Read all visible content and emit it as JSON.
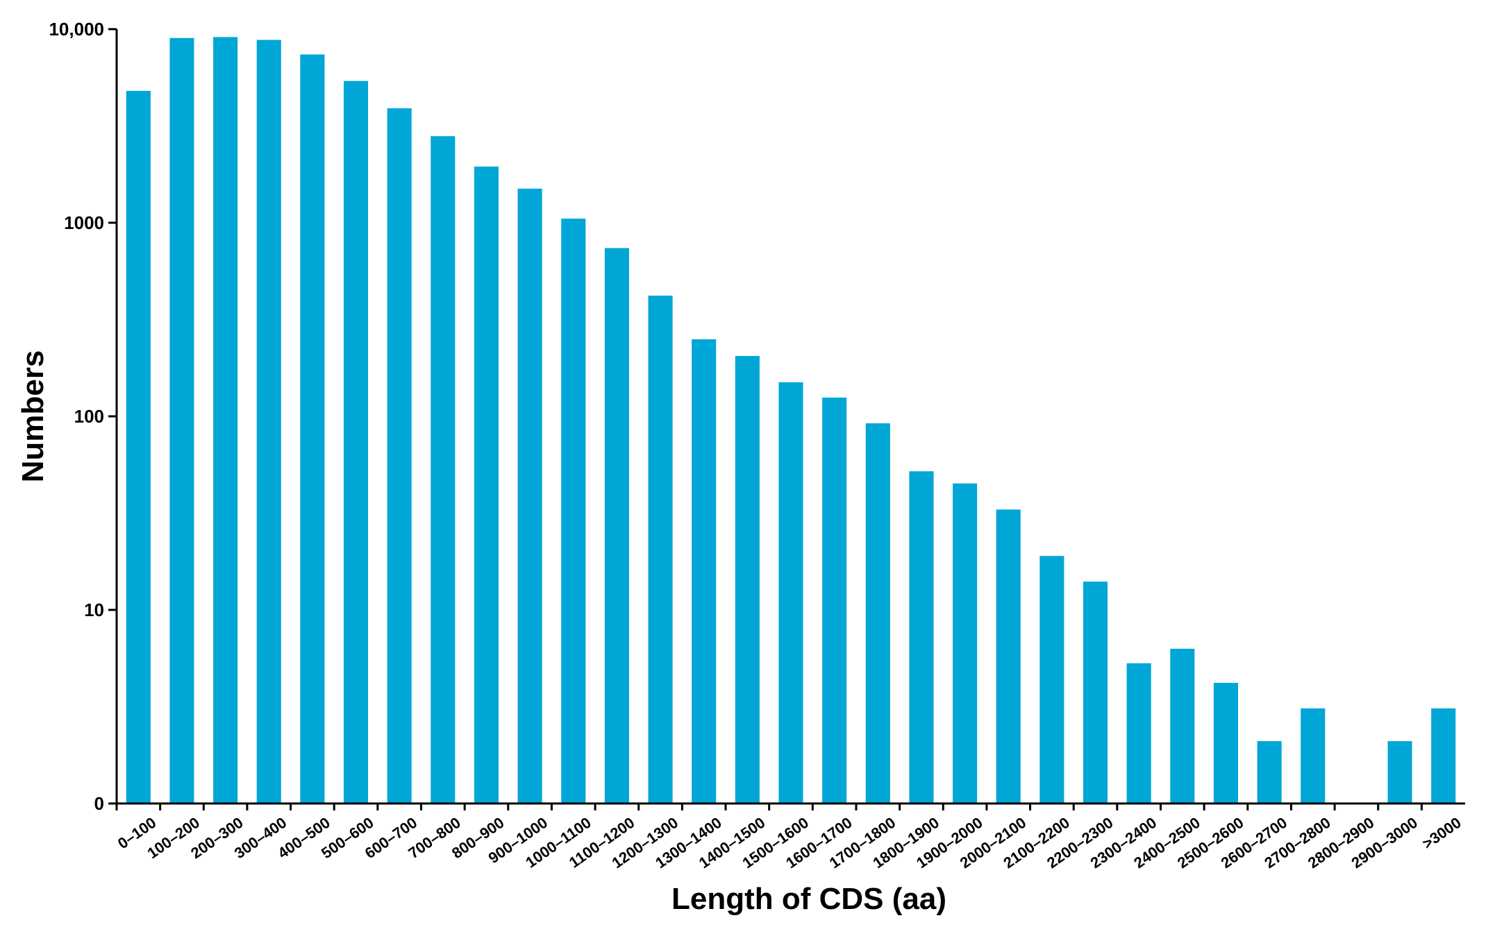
{
  "chart_data": {
    "type": "bar",
    "title": "",
    "xlabel": "Length of CDS (aa)",
    "ylabel": "Numbers",
    "y_scale": "log",
    "ylim": [
      1,
      10000
    ],
    "y_ticks": [
      {
        "value": 1,
        "label": "0"
      },
      {
        "value": 10,
        "label": "10"
      },
      {
        "value": 100,
        "label": "100"
      },
      {
        "value": 1000,
        "label": "1000"
      },
      {
        "value": 10000,
        "label": "10,000"
      }
    ],
    "grid": false,
    "legend": "none",
    "bar_color": "#00a6d6",
    "categories": [
      "0–100",
      "100–200",
      "200–300",
      "300–400",
      "400–500",
      "500–600",
      "600–700",
      "700–800",
      "800–900",
      "900–1000",
      "1000–1100",
      "1100–1200",
      "1200–1300",
      "1300–1400",
      "1400–1500",
      "1500–1600",
      "1600–1700",
      "1700–1800",
      "1800–1900",
      "1900–2000",
      "2000–2100",
      "2100–2200",
      "2200–2300",
      "2300–2400",
      "2400–2500",
      "2500–2600",
      "2600–2700",
      "2700–2800",
      "2800–2900",
      "2900–3000",
      ">3000"
    ],
    "values": [
      4800,
      9000,
      9100,
      8800,
      7400,
      5400,
      3900,
      2800,
      1950,
      1500,
      1050,
      740,
      420,
      250,
      205,
      150,
      125,
      92,
      52,
      45,
      33,
      19,
      14,
      5.3,
      6.3,
      4.2,
      2.1,
      3.1,
      0,
      2.1,
      3.1
    ]
  }
}
